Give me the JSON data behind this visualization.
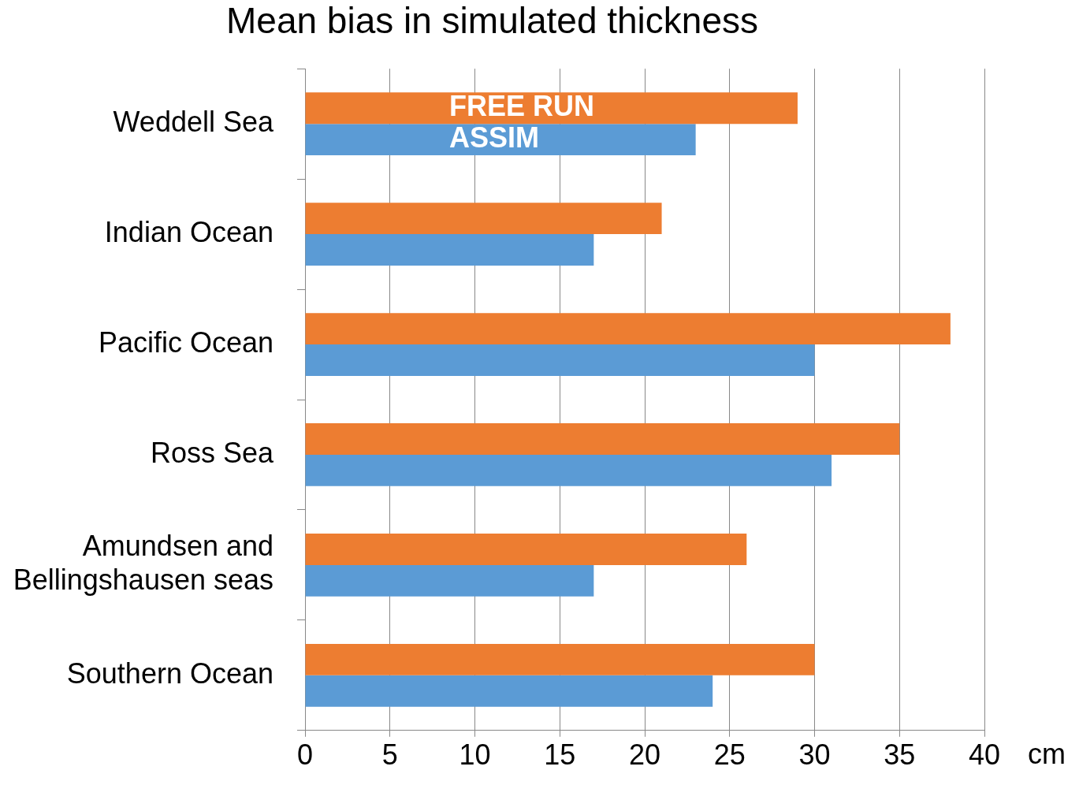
{
  "chart_data": {
    "type": "bar",
    "orientation": "horizontal",
    "title": "Mean bias in simulated thickness",
    "xlabel": "cm",
    "categories": [
      "Weddell Sea",
      "Indian Ocean",
      "Pacific Ocean",
      "Ross Sea",
      "Amundsen and Bellingshausen seas",
      "Southern Ocean"
    ],
    "series": [
      {
        "name": "FREE RUN",
        "color": "#ed7d31",
        "values": [
          29,
          21,
          38,
          35,
          26,
          30
        ]
      },
      {
        "name": "ASSIM",
        "color": "#5b9bd5",
        "values": [
          23,
          17,
          30,
          31,
          17,
          24
        ]
      }
    ],
    "xlim": [
      0,
      40
    ],
    "xticks": [
      0,
      5,
      10,
      15,
      20,
      25,
      30,
      35,
      40
    ],
    "grid": "x",
    "legend": false
  }
}
